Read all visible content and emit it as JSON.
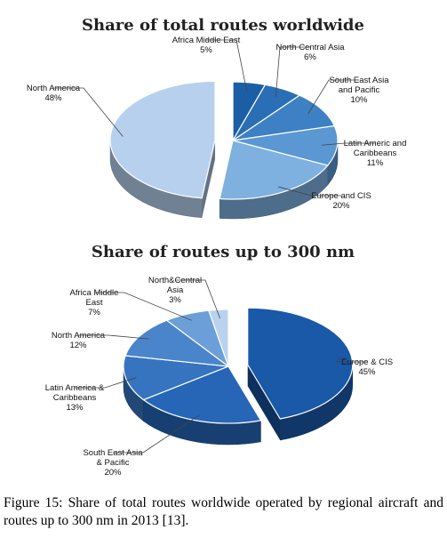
{
  "chart_data": [
    {
      "type": "pie",
      "title": "Share of total routes worldwide",
      "slices": [
        {
          "label_lines": [
            "Africa Middle East"
          ],
          "value_text": "5%",
          "value": 5,
          "color": "#1c5ea6"
        },
        {
          "label_lines": [
            "North Central Asia"
          ],
          "value_text": "6%",
          "value": 6,
          "color": "#2a6eb6"
        },
        {
          "label_lines": [
            "South East Asia",
            "and Pacific"
          ],
          "value_text": "10%",
          "value": 10,
          "color": "#3d80c4"
        },
        {
          "label_lines": [
            "Latin Americ and",
            "Caribbeans"
          ],
          "value_text": "11%",
          "value": 11,
          "color": "#5b97d2"
        },
        {
          "label_lines": [
            "Europe and CIS"
          ],
          "value_text": "20%",
          "value": 20,
          "color": "#7eb0e0"
        },
        {
          "label_lines": [
            "North America"
          ],
          "value_text": "48%",
          "value": 48,
          "color": "#b7d0ee"
        }
      ]
    },
    {
      "type": "pie",
      "title": "Share of routes up to 300 nm",
      "slices": [
        {
          "label_lines": [
            "Europe & CIS"
          ],
          "value_text": "45%",
          "value": 45,
          "color": "#1a58a8"
        },
        {
          "label_lines": [
            "South East Asia",
            "& Pacific"
          ],
          "value_text": "20%",
          "value": 20,
          "color": "#2766b6"
        },
        {
          "label_lines": [
            "Latin America &",
            "Caribbeans"
          ],
          "value_text": "13%",
          "value": 13,
          "color": "#3674bf"
        },
        {
          "label_lines": [
            "North America"
          ],
          "value_text": "12%",
          "value": 12,
          "color": "#4a85cb"
        },
        {
          "label_lines": [
            "Africa Middle",
            "East"
          ],
          "value_text": "7%",
          "value": 7,
          "color": "#6c9fd8"
        },
        {
          "label_lines": [
            "North&Central",
            "Asia"
          ],
          "value_text": "3%",
          "value": 3,
          "color": "#b9d2ee"
        }
      ]
    }
  ],
  "caption": {
    "label": "Figure 15:",
    "text": "Share of total routes worldwide operated by regional aircraft and routes up to 300 nm in 2013 [13]."
  }
}
